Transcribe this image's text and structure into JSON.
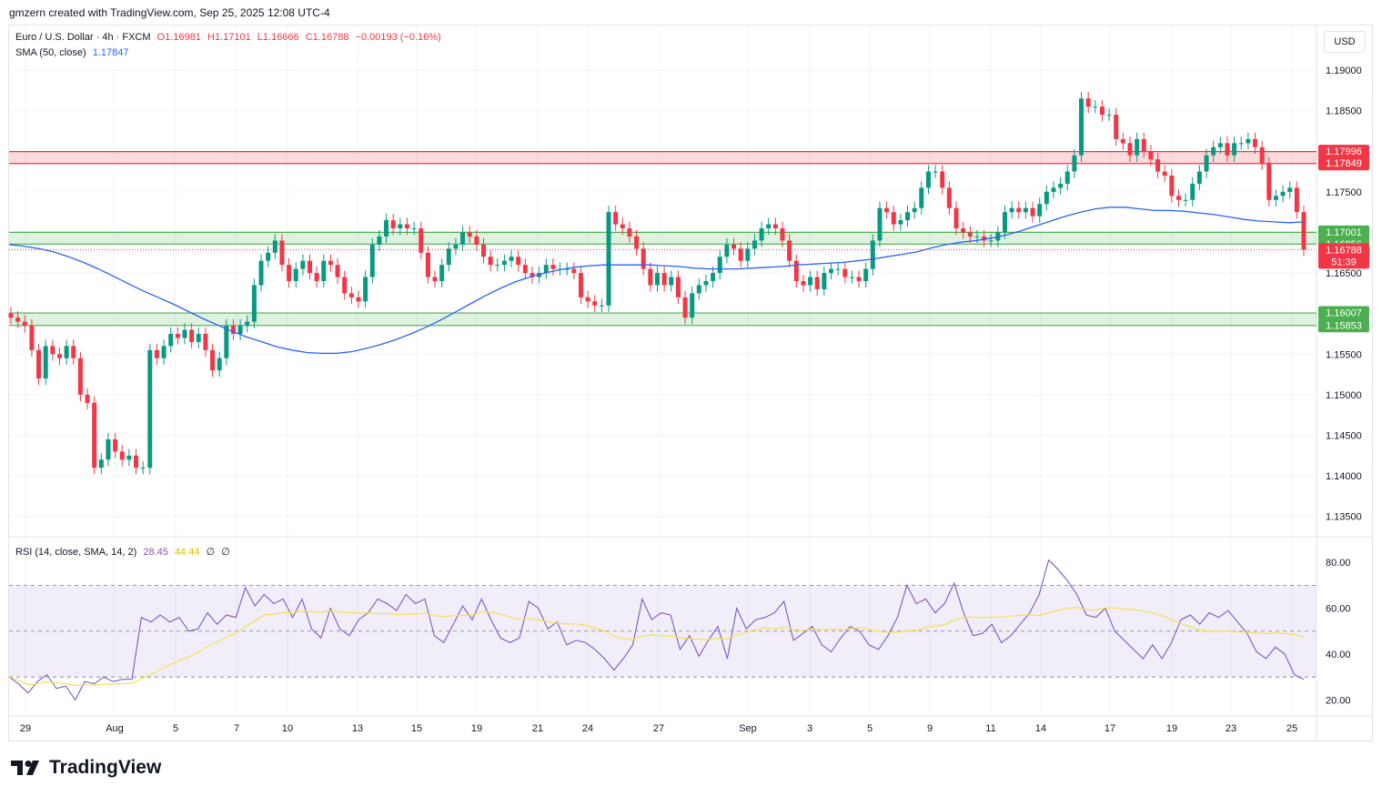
{
  "header": {
    "credit": "gmzern created with TradingView.com, Sep 25, 2025 12:08 UTC-4"
  },
  "legend": {
    "symbol": "Euro / U.S. Dollar · 4h · FXCM",
    "open": "O1.16981",
    "high": "H1.17101",
    "low": "L1.16666",
    "close": "C1.16788",
    "change": "−0.00193 (−0.16%)",
    "sma_label": "SMA (50, close)",
    "sma_value": "1.17847",
    "rsi_label": "RSI (14, close, SMA, 14, 2)",
    "rsi_value": "28.45",
    "rsi_sma_value": "44.44",
    "rsi_extra1": "∅",
    "rsi_extra2": "∅"
  },
  "currency_button": "USD",
  "footer": {
    "brand": "TradingView"
  },
  "colors": {
    "up": "#089981",
    "down": "#f23645",
    "sma": "#2962ff",
    "rsi": "#7e57c2",
    "rsi_sma": "#f5e050",
    "resistance": "#f23645",
    "support": "#4caf50"
  },
  "chart_data": {
    "type": "candlestick",
    "title": "Euro / U.S. Dollar · 4h · FXCM",
    "price_axis": {
      "range": [
        1.1325,
        1.1955
      ],
      "ticks": [
        "1.19000",
        "1.18500",
        "1.17500",
        "1.16500",
        "1.15500",
        "1.15000",
        "1.14500",
        "1.14000",
        "1.13500"
      ]
    },
    "x_ticks": [
      "29",
      "Aug",
      "5",
      "7",
      "10",
      "13",
      "15",
      "19",
      "21",
      "24",
      "27",
      "Sep",
      "3",
      "5",
      "9",
      "11",
      "14",
      "17",
      "19",
      "23",
      "25"
    ],
    "price_labels": [
      {
        "text": "1.17996",
        "value": 1.17996,
        "kind": "resistance"
      },
      {
        "text": "1.17849",
        "value": 1.17849,
        "kind": "resistance"
      },
      {
        "text": "1.17001",
        "value": 1.17001,
        "kind": "support"
      },
      {
        "text": "1.16856",
        "value": 1.16856,
        "kind": "support"
      },
      {
        "text": "1.16788",
        "value": 1.16788,
        "kind": "last",
        "countdown": "51:39"
      },
      {
        "text": "1.16007",
        "value": 1.16007,
        "kind": "support"
      },
      {
        "text": "1.15853",
        "value": 1.15853,
        "kind": "support"
      }
    ],
    "zones": [
      {
        "from": 1.17849,
        "to": 1.17996,
        "kind": "resistance"
      },
      {
        "from": 1.16856,
        "to": 1.17001,
        "kind": "support"
      },
      {
        "from": 1.15853,
        "to": 1.16007,
        "kind": "support"
      }
    ],
    "close_path": [
      1.1595,
      1.159,
      1.1585,
      1.1555,
      1.152,
      1.156,
      1.155,
      1.1545,
      1.156,
      1.1545,
      1.15,
      1.149,
      1.141,
      1.142,
      1.1445,
      1.143,
      1.142,
      1.1425,
      1.141,
      1.141,
      1.1555,
      1.1545,
      1.156,
      1.1575,
      1.157,
      1.158,
      1.1565,
      1.1575,
      1.1555,
      1.153,
      1.1545,
      1.1585,
      1.1575,
      1.1585,
      1.159,
      1.1635,
      1.1665,
      1.1675,
      1.169,
      1.166,
      1.164,
      1.1655,
      1.1665,
      1.165,
      1.164,
      1.1665,
      1.166,
      1.1645,
      1.1625,
      1.162,
      1.1615,
      1.1645,
      1.1685,
      1.1695,
      1.1715,
      1.1705,
      1.171,
      1.1705,
      1.1705,
      1.1675,
      1.1645,
      1.164,
      1.166,
      1.168,
      1.1685,
      1.17,
      1.1695,
      1.1685,
      1.167,
      1.166,
      1.166,
      1.1665,
      1.167,
      1.166,
      1.165,
      1.1645,
      1.165,
      1.166,
      1.1655,
      1.1655,
      1.1655,
      1.165,
      1.162,
      1.1615,
      1.161,
      1.161,
      1.1725,
      1.171,
      1.1705,
      1.1695,
      1.168,
      1.1655,
      1.1635,
      1.165,
      1.1635,
      1.1645,
      1.162,
      1.1595,
      1.1625,
      1.1635,
      1.164,
      1.165,
      1.167,
      1.1685,
      1.168,
      1.1665,
      1.168,
      1.169,
      1.1705,
      1.171,
      1.1705,
      1.169,
      1.1665,
      1.164,
      1.1635,
      1.1645,
      1.163,
      1.165,
      1.1655,
      1.1655,
      1.1645,
      1.1645,
      1.164,
      1.1655,
      1.169,
      1.173,
      1.1725,
      1.171,
      1.1715,
      1.1725,
      1.173,
      1.1755,
      1.1775,
      1.1775,
      1.1755,
      1.173,
      1.1705,
      1.17,
      1.1695,
      1.1695,
      1.169,
      1.169,
      1.17,
      1.1725,
      1.173,
      1.1725,
      1.173,
      1.172,
      1.1735,
      1.175,
      1.1755,
      1.176,
      1.1775,
      1.1795,
      1.1865,
      1.1855,
      1.1855,
      1.1845,
      1.1845,
      1.1815,
      1.181,
      1.1795,
      1.1815,
      1.18,
      1.179,
      1.1775,
      1.177,
      1.1745,
      1.174,
      1.174,
      1.176,
      1.1775,
      1.1795,
      1.1805,
      1.181,
      1.1795,
      1.181,
      1.181,
      1.1815,
      1.1805,
      1.1785,
      1.174,
      1.1745,
      1.175,
      1.1755,
      1.1725,
      1.1679
    ],
    "sma_path": [
      1.1685,
      1.1683,
      1.168,
      1.1676,
      1.167,
      1.1663,
      1.1655,
      1.1646,
      1.1637,
      1.1628,
      1.162,
      1.1612,
      1.1603,
      1.1594,
      1.1586,
      1.1578,
      1.1571,
      1.1565,
      1.1559,
      1.1555,
      1.1552,
      1.1551,
      1.1551,
      1.1553,
      1.1557,
      1.1562,
      1.1568,
      1.1575,
      1.1583,
      1.1592,
      1.1602,
      1.1612,
      1.1622,
      1.1631,
      1.1639,
      1.1645,
      1.165,
      1.1654,
      1.1657,
      1.1659,
      1.166,
      1.166,
      1.166,
      1.166,
      1.1659,
      1.1658,
      1.1656,
      1.1655,
      1.1655,
      1.1655,
      1.1656,
      1.1657,
      1.1658,
      1.166,
      1.1661,
      1.1662,
      1.1663,
      1.1665,
      1.1667,
      1.167,
      1.1673,
      1.1676,
      1.1681,
      1.1685,
      1.1688,
      1.169,
      1.1693,
      1.1697,
      1.1702,
      1.1708,
      1.1714,
      1.172,
      1.1725,
      1.1729,
      1.1731,
      1.1731,
      1.1729,
      1.1727,
      1.1727,
      1.1726,
      1.1724,
      1.1722,
      1.1719,
      1.1716,
      1.1714,
      1.1713,
      1.1712,
      1.1713
    ],
    "rsi": {
      "ylim": [
        13,
        90
      ],
      "ticks": [
        "80.00",
        "60.00",
        "40.00",
        "20.00"
      ],
      "bands": {
        "upper": 70,
        "middle": 50,
        "lower": 30
      },
      "rsi_path": [
        30,
        27,
        23,
        28,
        31,
        25,
        26,
        20,
        28,
        27,
        30,
        28,
        29,
        29,
        56,
        54,
        57,
        54,
        56,
        50,
        51,
        58,
        53,
        57,
        56,
        69,
        61,
        66,
        62,
        64,
        56,
        64,
        51,
        47,
        60,
        51,
        48,
        55,
        58,
        64,
        62,
        59,
        66,
        62,
        64,
        48,
        45,
        53,
        61,
        55,
        64,
        55,
        47,
        45,
        47,
        63,
        60,
        51,
        54,
        44,
        46,
        45,
        42,
        38,
        33,
        38,
        44,
        64,
        55,
        58,
        57,
        42,
        48,
        39,
        46,
        52,
        38,
        60,
        51,
        55,
        56,
        58,
        63,
        46,
        49,
        52,
        44,
        41,
        47,
        52,
        50,
        44,
        42,
        48,
        56,
        70,
        62,
        64,
        58,
        62,
        71,
        58,
        48,
        49,
        53,
        45,
        48,
        53,
        58,
        66,
        81,
        77,
        72,
        66,
        57,
        56,
        60,
        50,
        46,
        42,
        38,
        44,
        38,
        45,
        55,
        57,
        53,
        58,
        56,
        59,
        54,
        49,
        41,
        38,
        43,
        40,
        31,
        29
      ]
    }
  }
}
